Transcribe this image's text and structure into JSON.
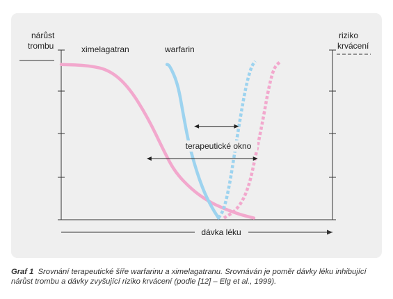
{
  "chart_data": {
    "type": "line",
    "title": "",
    "left_axis_label": [
      "nárůst",
      "trombu"
    ],
    "right_axis_label": [
      "riziko",
      "krvácení"
    ],
    "xlabel": "dávka léku",
    "annotation": "terapeutické okno",
    "series": [
      {
        "name": "ximelagatran",
        "kind": "thrombosis",
        "style": "solid",
        "color": "#f2a8cd",
        "points": [
          [
            0.0,
            0.915
          ],
          [
            0.1,
            0.91
          ],
          [
            0.18,
            0.88
          ],
          [
            0.25,
            0.78
          ],
          [
            0.32,
            0.6
          ],
          [
            0.38,
            0.4
          ],
          [
            0.42,
            0.28
          ],
          [
            0.48,
            0.18
          ],
          [
            0.54,
            0.11
          ],
          [
            0.6,
            0.065
          ],
          [
            0.66,
            0.03
          ],
          [
            0.71,
            0.01
          ]
        ]
      },
      {
        "name": "warfarin",
        "kind": "thrombosis",
        "style": "solid",
        "color": "#9dd3ef",
        "points": [
          [
            0.39,
            0.915
          ],
          [
            0.4,
            0.91
          ],
          [
            0.43,
            0.8
          ],
          [
            0.45,
            0.62
          ],
          [
            0.47,
            0.45
          ],
          [
            0.5,
            0.28
          ],
          [
            0.53,
            0.15
          ],
          [
            0.56,
            0.06
          ],
          [
            0.58,
            0.01
          ]
        ]
      },
      {
        "name": "",
        "kind": "bleeding",
        "style": "dashed",
        "color": "#9dd3ef",
        "points": [
          [
            0.58,
            0.01
          ],
          [
            0.6,
            0.06
          ],
          [
            0.62,
            0.2
          ],
          [
            0.64,
            0.4
          ],
          [
            0.66,
            0.6
          ],
          [
            0.68,
            0.78
          ],
          [
            0.7,
            0.9
          ],
          [
            0.715,
            0.935
          ]
        ]
      },
      {
        "name": "",
        "kind": "bleeding",
        "style": "dashed",
        "color": "#f2a8cd",
        "points": [
          [
            0.6,
            0.01
          ],
          [
            0.65,
            0.06
          ],
          [
            0.69,
            0.18
          ],
          [
            0.72,
            0.4
          ],
          [
            0.745,
            0.6
          ],
          [
            0.765,
            0.78
          ],
          [
            0.785,
            0.9
          ],
          [
            0.81,
            0.935
          ]
        ]
      }
    ],
    "windows": [
      {
        "for": "warfarin",
        "x": [
          0.49,
          0.655
        ],
        "y": 0.55
      },
      {
        "for": "ximelagatran",
        "x": [
          0.315,
          0.725
        ],
        "y": 0.36
      }
    ],
    "grid": false
  },
  "caption": {
    "label": "Graf 1",
    "text": "Srovnání terapeutické šíře warfarinu a ximelagatranu. Srovnáván je poměr dávky léku inhibující nárůst trombu a dávky zvyšující riziko krvácení (podle [12] – Elg et al., 1999)."
  }
}
